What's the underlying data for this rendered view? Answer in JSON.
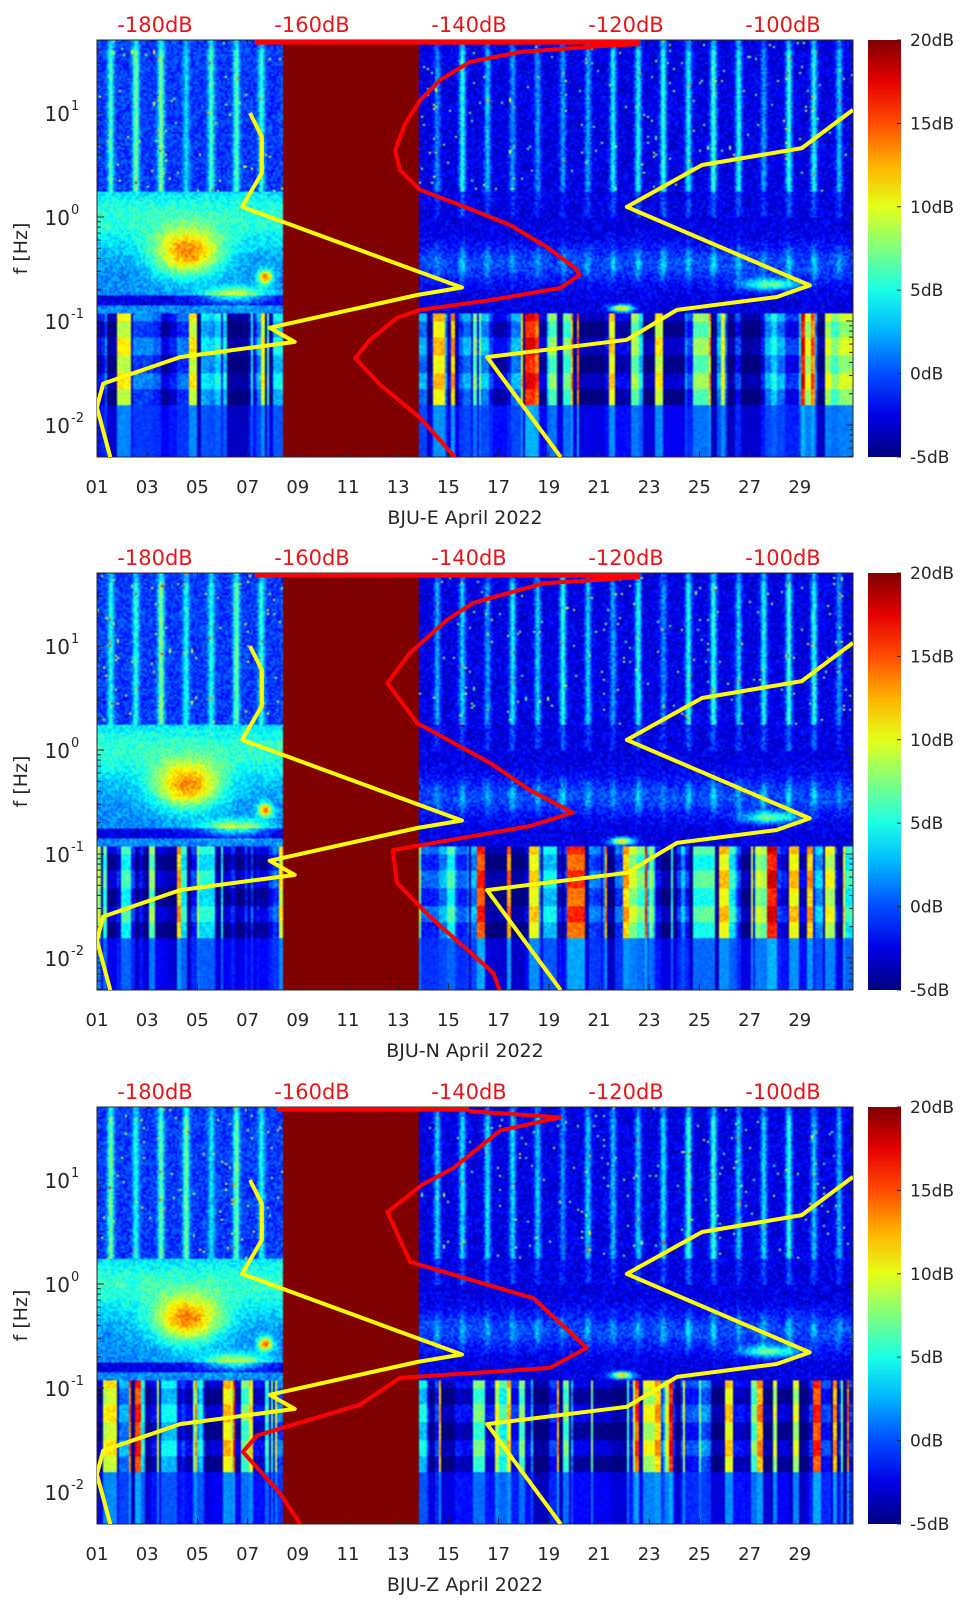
{
  "chart_data": [
    {
      "type": "heatmap",
      "xlabel": "BJU-E April 2022",
      "ylabel": "f [Hz]",
      "xlim": [
        1,
        31.1
      ],
      "ylim": [
        0.0049,
        50
      ],
      "yscale": "log",
      "xticks": {
        "values": [
          1,
          3,
          5,
          7,
          9,
          11,
          13,
          15,
          17,
          19,
          21,
          23,
          25,
          27,
          29
        ],
        "labels": [
          "01",
          "03",
          "05",
          "07",
          "09",
          "11",
          "13",
          "15",
          "17",
          "19",
          "21",
          "23",
          "25",
          "27",
          "29"
        ]
      },
      "yticks": {
        "values": [
          10,
          1,
          0.1,
          0.01
        ],
        "base": [
          "10",
          "10",
          "10",
          "10"
        ],
        "exp": [
          "1",
          "0",
          "-1",
          "-2"
        ]
      },
      "db_axis": {
        "range": [
          -187.4,
          -91.1
        ],
        "values": [
          -180,
          -160,
          -140,
          -120,
          -100
        ],
        "labels": [
          "-180dB",
          "-160dB",
          "-140dB",
          "-120dB",
          "-100dB"
        ]
      },
      "colorbar": {
        "colormap": "jet",
        "range": [
          -5,
          20
        ],
        "values": [
          20,
          15,
          10,
          5,
          0,
          -5
        ],
        "labels": [
          "20dB",
          "15dB",
          "10dB",
          "5dB",
          "0dB",
          "-5dB"
        ]
      },
      "data_gap_days": [
        8.37,
        13.79
      ],
      "series": [
        {
          "name": "NLNM",
          "color": "#ffff00",
          "points": [
            [
              -167.9,
              10
            ],
            [
              -166.4,
              5.9
            ],
            [
              -166.4,
              2.65
            ],
            [
              -168.9,
              1.25
            ],
            [
              -140.9,
              0.21
            ],
            [
              -146.6,
              0.178
            ],
            [
              -165.4,
              0.086
            ],
            [
              -162.2,
              0.063
            ],
            [
              -176.8,
              0.045
            ],
            [
              -186.6,
              0.025
            ],
            [
              -187.4,
              0.0148
            ],
            [
              -185.7,
              0.0049
            ]
          ]
        },
        {
          "name": "NHNM",
          "color": "#ffff00",
          "points": [
            [
              -91.1,
              10.7
            ],
            [
              -97.6,
              4.6
            ],
            [
              -110.3,
              3.16
            ],
            [
              -119.9,
              1.25
            ],
            [
              -96.6,
              0.22
            ],
            [
              -100.8,
              0.17
            ],
            [
              -113.5,
              0.128
            ],
            [
              -119.9,
              0.066
            ],
            [
              -137.7,
              0.045
            ],
            [
              -128.3,
              0.0049
            ]
          ]
        },
        {
          "name": "PSD",
          "color": "#ff0000",
          "top_segment": {
            "db": [
              -167.3,
              -118.2
            ],
            "f": 48
          },
          "points": [
            [
              -118.2,
              46
            ],
            [
              -123.3,
              44
            ],
            [
              -133.5,
              38.6
            ],
            [
              -139.9,
              31
            ],
            [
              -143.7,
              20.7
            ],
            [
              -146.2,
              13.3
            ],
            [
              -148.2,
              7.7
            ],
            [
              -149.4,
              4.4
            ],
            [
              -148.8,
              2.83
            ],
            [
              -146.2,
              1.82
            ],
            [
              -141.1,
              1.3
            ],
            [
              -134.8,
              0.84
            ],
            [
              -130.1,
              0.515
            ],
            [
              -126.5,
              0.324
            ],
            [
              -125.9,
              0.277
            ],
            [
              -128.4,
              0.207
            ],
            [
              -137.3,
              0.159
            ],
            [
              -146.2,
              0.128
            ],
            [
              -149.2,
              0.107
            ],
            [
              -152.6,
              0.066
            ],
            [
              -154.5,
              0.044
            ],
            [
              -151.3,
              0.0243
            ],
            [
              -146.2,
              0.0117
            ],
            [
              -141.8,
              0.0049
            ]
          ]
        }
      ]
    },
    {
      "type": "heatmap",
      "xlabel": "BJU-N April 2022",
      "ylabel": "f [Hz]",
      "xlim": [
        1,
        31.1
      ],
      "ylim": [
        0.0049,
        50
      ],
      "yscale": "log",
      "xticks": {
        "values": [
          1,
          3,
          5,
          7,
          9,
          11,
          13,
          15,
          17,
          19,
          21,
          23,
          25,
          27,
          29
        ],
        "labels": [
          "01",
          "03",
          "05",
          "07",
          "09",
          "11",
          "13",
          "15",
          "17",
          "19",
          "21",
          "23",
          "25",
          "27",
          "29"
        ]
      },
      "yticks": {
        "values": [
          10,
          1,
          0.1,
          0.01
        ],
        "base": [
          "10",
          "10",
          "10",
          "10"
        ],
        "exp": [
          "1",
          "0",
          "-1",
          "-2"
        ]
      },
      "db_axis": {
        "range": [
          -187.4,
          -91.1
        ],
        "values": [
          -180,
          -160,
          -140,
          -120,
          -100
        ],
        "labels": [
          "-180dB",
          "-160dB",
          "-140dB",
          "-120dB",
          "-100dB"
        ]
      },
      "colorbar": {
        "colormap": "jet",
        "range": [
          -5,
          20
        ],
        "values": [
          20,
          15,
          10,
          5,
          0,
          -5
        ],
        "labels": [
          "20dB",
          "15dB",
          "10dB",
          "5dB",
          "0dB",
          "-5dB"
        ]
      },
      "data_gap_days": [
        8.37,
        13.79
      ],
      "series": [
        {
          "name": "NLNM",
          "color": "#ffff00",
          "points": [
            [
              -167.9,
              10
            ],
            [
              -166.4,
              5.9
            ],
            [
              -166.4,
              2.65
            ],
            [
              -168.9,
              1.25
            ],
            [
              -140.9,
              0.21
            ],
            [
              -146.6,
              0.178
            ],
            [
              -165.4,
              0.086
            ],
            [
              -162.2,
              0.063
            ],
            [
              -176.8,
              0.045
            ],
            [
              -186.6,
              0.025
            ],
            [
              -187.4,
              0.0148
            ],
            [
              -185.7,
              0.0049
            ]
          ]
        },
        {
          "name": "NHNM",
          "color": "#ffff00",
          "points": [
            [
              -91.1,
              10.7
            ],
            [
              -97.6,
              4.6
            ],
            [
              -110.3,
              3.16
            ],
            [
              -119.9,
              1.25
            ],
            [
              -96.6,
              0.22
            ],
            [
              -100.8,
              0.17
            ],
            [
              -113.5,
              0.128
            ],
            [
              -119.9,
              0.066
            ],
            [
              -137.7,
              0.045
            ],
            [
              -128.3,
              0.0049
            ]
          ]
        },
        {
          "name": "PSD",
          "color": "#ff0000",
          "top_segment": {
            "db": [
              -167.3,
              -118.2
            ],
            "f": 48
          },
          "points": [
            [
              -118.2,
              46
            ],
            [
              -130.6,
              40
            ],
            [
              -139.5,
              25.9
            ],
            [
              -142.8,
              17.8
            ],
            [
              -147.5,
              8.6
            ],
            [
              -150.4,
              4.4
            ],
            [
              -146.6,
              1.82
            ],
            [
              -137.3,
              0.75
            ],
            [
              -132.2,
              0.41
            ],
            [
              -126.8,
              0.25
            ],
            [
              -132.2,
              0.186
            ],
            [
              -149.7,
              0.109
            ],
            [
              -149.2,
              0.053
            ],
            [
              -145.0,
              0.025
            ],
            [
              -136.9,
              0.0072
            ],
            [
              -136.1,
              0.0049
            ]
          ]
        }
      ]
    },
    {
      "type": "heatmap",
      "xlabel": "BJU-Z April 2022",
      "ylabel": "f [Hz]",
      "xlim": [
        1,
        31.1
      ],
      "ylim": [
        0.0049,
        50
      ],
      "yscale": "log",
      "xticks": {
        "values": [
          1,
          3,
          5,
          7,
          9,
          11,
          13,
          15,
          17,
          19,
          21,
          23,
          25,
          27,
          29
        ],
        "labels": [
          "01",
          "03",
          "05",
          "07",
          "09",
          "11",
          "13",
          "15",
          "17",
          "19",
          "21",
          "23",
          "25",
          "27",
          "29"
        ]
      },
      "yticks": {
        "values": [
          10,
          1,
          0.1,
          0.01
        ],
        "base": [
          "10",
          "10",
          "10",
          "10"
        ],
        "exp": [
          "1",
          "0",
          "-1",
          "-2"
        ]
      },
      "db_axis": {
        "range": [
          -187.4,
          -91.1
        ],
        "values": [
          -180,
          -160,
          -140,
          -120,
          -100
        ],
        "labels": [
          "-180dB",
          "-160dB",
          "-140dB",
          "-120dB",
          "-100dB"
        ]
      },
      "colorbar": {
        "colormap": "jet",
        "range": [
          -5,
          20
        ],
        "values": [
          20,
          15,
          10,
          5,
          0,
          -5
        ],
        "labels": [
          "20dB",
          "15dB",
          "10dB",
          "5dB",
          "0dB",
          "-5dB"
        ]
      },
      "data_gap_days": [
        8.37,
        13.79
      ],
      "series": [
        {
          "name": "NLNM",
          "color": "#ffff00",
          "points": [
            [
              -167.9,
              10
            ],
            [
              -166.4,
              5.9
            ],
            [
              -166.4,
              2.65
            ],
            [
              -168.9,
              1.25
            ],
            [
              -140.9,
              0.21
            ],
            [
              -146.6,
              0.178
            ],
            [
              -165.4,
              0.086
            ],
            [
              -162.2,
              0.063
            ],
            [
              -176.8,
              0.045
            ],
            [
              -186.6,
              0.025
            ],
            [
              -187.4,
              0.0148
            ],
            [
              -185.7,
              0.0049
            ]
          ]
        },
        {
          "name": "NHNM",
          "color": "#ffff00",
          "points": [
            [
              -91.1,
              10.7
            ],
            [
              -97.6,
              4.6
            ],
            [
              -110.3,
              3.16
            ],
            [
              -119.9,
              1.25
            ],
            [
              -96.6,
              0.22
            ],
            [
              -100.8,
              0.17
            ],
            [
              -113.5,
              0.128
            ],
            [
              -119.9,
              0.066
            ],
            [
              -137.7,
              0.045
            ],
            [
              -128.3,
              0.0049
            ]
          ]
        },
        {
          "name": "PSD",
          "color": "#ff0000",
          "top_segment": {
            "db": [
              -164.5,
              -140.0
            ],
            "f": 48
          },
          "points": [
            [
              -140.0,
              46
            ],
            [
              -128.4,
              40
            ],
            [
              -136.0,
              30
            ],
            [
              -142.0,
              13
            ],
            [
              -146.0,
              9
            ],
            [
              -150.4,
              4.9
            ],
            [
              -147.5,
              1.63
            ],
            [
              -131.8,
              0.73
            ],
            [
              -125.0,
              0.243
            ],
            [
              -129.7,
              0.156
            ],
            [
              -148.8,
              0.125
            ],
            [
              -153.9,
              0.069
            ],
            [
              -167.0,
              0.035
            ],
            [
              -168.8,
              0.0243
            ],
            [
              -164.1,
              0.0098
            ],
            [
              -161.5,
              0.0049
            ]
          ]
        }
      ]
    }
  ]
}
